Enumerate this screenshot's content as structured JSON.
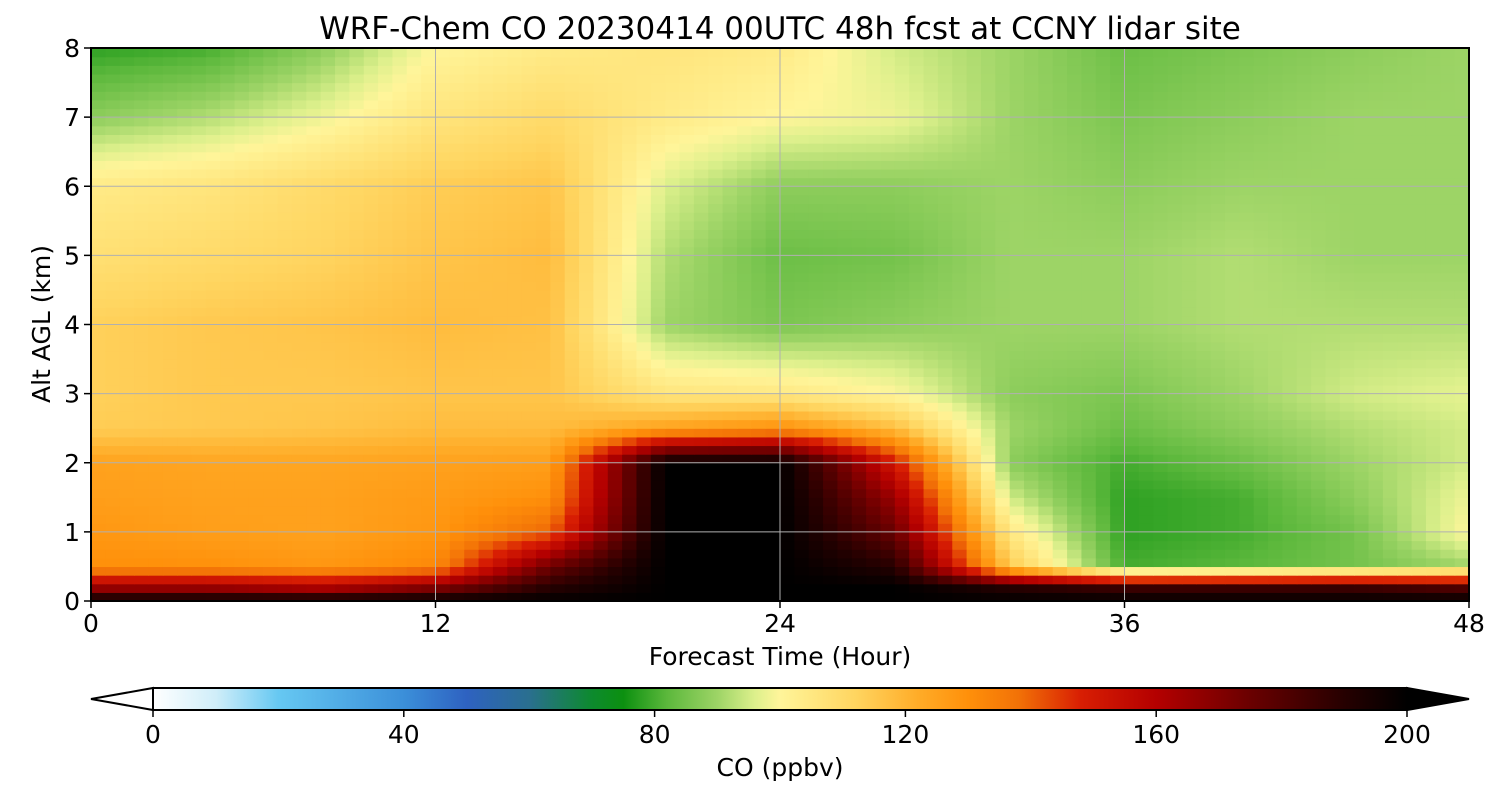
{
  "chart_data": {
    "type": "heatmap",
    "title": "WRF-Chem CO  20230414 00UTC 48h fcst at CCNY lidar site",
    "xlabel": "Forecast Time (Hour)",
    "ylabel": "Alt AGL (km)",
    "xlim": [
      0,
      48
    ],
    "ylim": [
      0,
      8
    ],
    "x_ticks": [
      0,
      12,
      24,
      36,
      48
    ],
    "y_ticks": [
      0,
      1,
      2,
      3,
      4,
      5,
      6,
      7,
      8
    ],
    "grid": true,
    "x": [
      0,
      4,
      8,
      12,
      16,
      20,
      24,
      28,
      32,
      36,
      40,
      44,
      48
    ],
    "y": [
      0,
      0.2,
      0.5,
      1,
      1.5,
      2,
      2.5,
      3,
      4,
      5,
      6,
      7,
      8
    ],
    "values": [
      [
        200,
        200,
        200,
        200,
        200,
        200,
        200,
        200,
        200,
        200,
        200,
        200,
        200
      ],
      [
        165,
        165,
        160,
        170,
        190,
        200,
        200,
        200,
        190,
        185,
        185,
        185,
        180
      ],
      [
        130,
        130,
        128,
        132,
        175,
        200,
        200,
        190,
        115,
        80,
        82,
        85,
        90
      ],
      [
        128,
        126,
        125,
        128,
        140,
        200,
        200,
        175,
        105,
        78,
        80,
        85,
        100
      ],
      [
        126,
        125,
        125,
        127,
        130,
        200,
        200,
        165,
        95,
        78,
        80,
        88,
        98
      ],
      [
        125,
        124,
        124,
        125,
        126,
        200,
        200,
        150,
        88,
        80,
        84,
        90,
        95
      ],
      [
        114,
        115,
        116,
        118,
        118,
        125,
        130,
        118,
        90,
        84,
        88,
        92,
        95
      ],
      [
        113,
        115,
        115,
        116,
        116,
        106,
        105,
        100,
        88,
        86,
        90,
        95,
        97
      ],
      [
        113,
        115,
        116,
        118,
        117,
        90,
        86,
        88,
        90,
        90,
        92,
        92,
        92
      ],
      [
        108,
        110,
        112,
        116,
        118,
        92,
        84,
        85,
        90,
        90,
        92,
        90,
        90
      ],
      [
        104,
        106,
        110,
        114,
        116,
        96,
        88,
        88,
        90,
        88,
        90,
        90,
        90
      ],
      [
        88,
        92,
        98,
        106,
        110,
        104,
        100,
        98,
        90,
        86,
        88,
        90,
        90
      ],
      [
        78,
        80,
        88,
        100,
        104,
        106,
        104,
        95,
        90,
        84,
        86,
        88,
        90
      ]
    ],
    "colorbar": {
      "label": "CO  (ppbv)",
      "min": 0,
      "max": 200,
      "ticks": [
        0,
        40,
        80,
        120,
        160,
        200
      ],
      "extend": "both"
    },
    "colormap": [
      [
        0,
        "#ffffff"
      ],
      [
        10,
        "#d0eef9"
      ],
      [
        20,
        "#66c8f2"
      ],
      [
        40,
        "#3b8fd9"
      ],
      [
        50,
        "#2e62c1"
      ],
      [
        60,
        "#2a6f8f"
      ],
      [
        70,
        "#0d8a2e"
      ],
      [
        75,
        "#0c9010"
      ],
      [
        82,
        "#5cb83c"
      ],
      [
        90,
        "#9dd466"
      ],
      [
        96,
        "#ddf08c"
      ],
      [
        100,
        "#fff59a"
      ],
      [
        112,
        "#ffd560"
      ],
      [
        122,
        "#ffac28"
      ],
      [
        130,
        "#ff900a"
      ],
      [
        138,
        "#f27207"
      ],
      [
        148,
        "#d81e03"
      ],
      [
        160,
        "#b40000"
      ],
      [
        175,
        "#6a0000"
      ],
      [
        190,
        "#260000"
      ],
      [
        200,
        "#000000"
      ]
    ]
  }
}
